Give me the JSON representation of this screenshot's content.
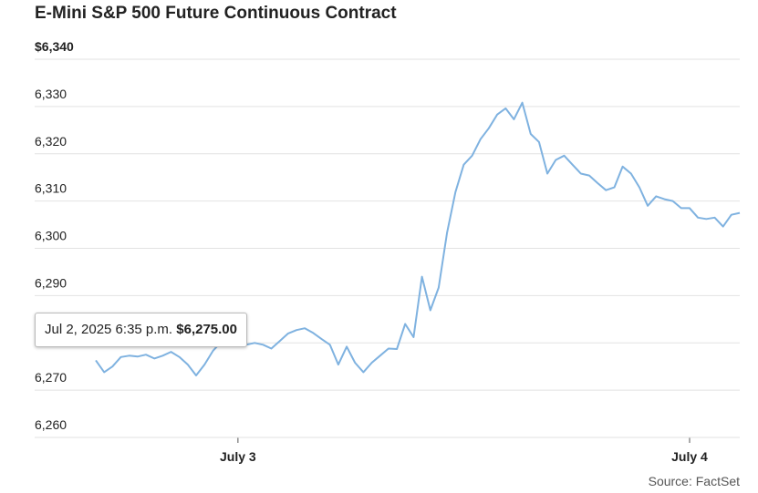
{
  "chart_data": {
    "type": "line",
    "title": "E-Mini S&P 500 Future Continuous Contract",
    "source": "Source: FactSet",
    "tooltip_date": "Jul 2, 2025 6:35 p.m.",
    "tooltip_value": "$6,275.00",
    "ylim": [
      6260,
      6340
    ],
    "yticks": [
      {
        "value": 6260,
        "label": "6,260"
      },
      {
        "value": 6270,
        "label": "6,270"
      },
      {
        "value": 6280,
        "label": "6,280"
      },
      {
        "value": 6290,
        "label": "6,290"
      },
      {
        "value": 6300,
        "label": "6,300"
      },
      {
        "value": 6310,
        "label": "6,310"
      },
      {
        "value": 6320,
        "label": "6,320"
      },
      {
        "value": 6330,
        "label": "6,330"
      },
      {
        "value": 6340,
        "label": "$6,340"
      }
    ],
    "grid": true,
    "categories": [
      null,
      null,
      null,
      null,
      null,
      null,
      null,
      null,
      null,
      null,
      null,
      null,
      null,
      null,
      null,
      null,
      null,
      "July 3",
      null,
      null,
      null,
      null,
      null,
      null,
      null,
      null,
      null,
      null,
      null,
      null,
      null,
      null,
      null,
      null,
      null,
      null,
      null,
      null,
      null,
      null,
      null,
      null,
      null,
      null,
      null,
      null,
      null,
      null,
      null,
      null,
      null,
      null,
      null,
      null,
      null,
      null,
      null,
      null,
      null,
      null,
      null,
      null,
      null,
      null,
      null,
      null,
      null,
      null,
      null,
      null,
      null,
      "July 4",
      null,
      null,
      null,
      null,
      null,
      null
    ],
    "series": [
      {
        "name": "E-Mini S&P 500",
        "color": "#7fb2e0",
        "values": [
          6276.3,
          6273.8,
          6275,
          6277,
          6277.3,
          6277.1,
          6277.5,
          6276.7,
          6277.3,
          6278.1,
          6277,
          6275.4,
          6273.1,
          6275.4,
          6278.3,
          6280.2,
          6280.8,
          6280,
          6279.6,
          6280,
          6279.6,
          6278.8,
          6280.4,
          6282,
          6282.7,
          6283.1,
          6282.1,
          6280.8,
          6279.6,
          6275.4,
          6279.2,
          6275.8,
          6273.8,
          6275.8,
          6277.3,
          6278.8,
          6278.7,
          6284,
          6281.2,
          6294,
          6286.9,
          6291.7,
          6303.3,
          6311.9,
          6317.7,
          6319.6,
          6323.1,
          6325.4,
          6328.3,
          6329.6,
          6327.3,
          6330.8,
          6324.2,
          6322.5,
          6315.8,
          6318.7,
          6319.6,
          6317.7,
          6315.8,
          6315.4,
          6313.8,
          6312.3,
          6312.9,
          6317.3,
          6315.8,
          6312.9,
          6309,
          6311,
          6310.4,
          6310,
          6308.5,
          6308.5,
          6306.5,
          6306.2,
          6306.5,
          6304.6,
          6307.1,
          6307.5
        ]
      }
    ]
  }
}
